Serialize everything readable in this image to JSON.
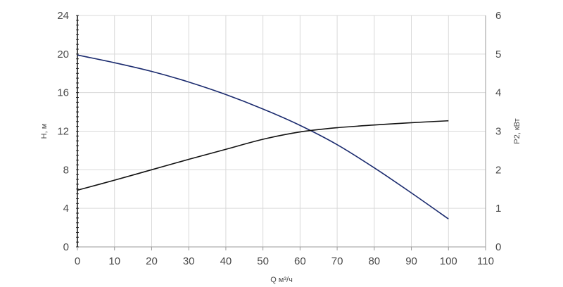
{
  "chart_data": {
    "type": "line",
    "title": "",
    "xlabel": "Q м³/ч",
    "ylabel_left": "H, м",
    "ylabel_right": "P2, кВт",
    "xlim": [
      0,
      110
    ],
    "ylim_left": [
      0,
      24
    ],
    "ylim_right": [
      0,
      6
    ],
    "x_ticks": [
      0,
      10,
      20,
      30,
      40,
      50,
      60,
      70,
      80,
      90,
      100,
      110
    ],
    "y_ticks_left": [
      0,
      4,
      8,
      12,
      16,
      20,
      24
    ],
    "y_ticks_right": [
      0,
      1,
      2,
      3,
      4,
      5,
      6
    ],
    "grid": true,
    "legend": "none",
    "series": [
      {
        "axis": "left",
        "color": "#1a2a6e",
        "x": [
          0,
          10,
          20,
          30,
          40,
          50,
          60,
          70,
          80,
          90,
          100
        ],
        "values": [
          19.9,
          19.1,
          18.2,
          17.1,
          15.8,
          14.3,
          12.6,
          10.6,
          8.2,
          5.6,
          2.9
        ]
      },
      {
        "axis": "right",
        "color": "#111111",
        "x": [
          0,
          10,
          20,
          30,
          40,
          50,
          60,
          70,
          80,
          90,
          100
        ],
        "values": [
          1.47,
          1.73,
          2.0,
          2.27,
          2.53,
          2.79,
          2.98,
          3.09,
          3.16,
          3.22,
          3.27
        ]
      }
    ]
  }
}
